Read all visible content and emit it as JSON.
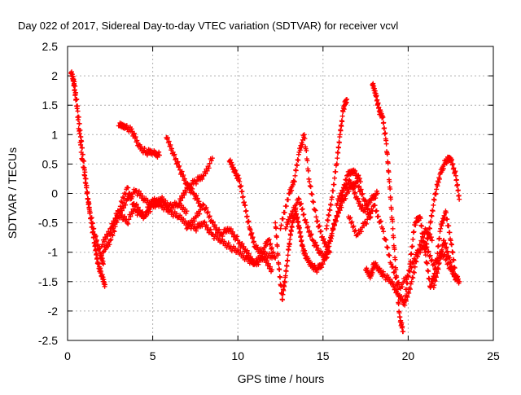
{
  "chart_data": {
    "type": "scatter",
    "title": "Day 022 of 2017, Sidereal Day-to-day VTEC variation (SDTVAR) for receiver vcvl",
    "xlabel": "GPS time / hours",
    "ylabel": "SDTVAR / TECUs",
    "xlim": [
      0,
      25
    ],
    "ylim": [
      -2.5,
      2.5
    ],
    "xticks": [
      0,
      5,
      10,
      15,
      20,
      25
    ],
    "yticks": [
      -2.5,
      -2,
      -1.5,
      -1,
      -0.5,
      0,
      0.5,
      1,
      1.5,
      2,
      2.5
    ],
    "xtick_labels": [
      "0",
      "5",
      "10",
      "15",
      "20",
      "25"
    ],
    "ytick_labels": [
      "-2.5",
      "-2",
      "-1.5",
      "-1",
      "-0.5",
      "0",
      "0.5",
      "1",
      "1.5",
      "2",
      "2.5"
    ],
    "grid": true,
    "marker": "+",
    "series": [
      {
        "name": "SDTVAR",
        "color": "#ff0000",
        "tracks": [
          {
            "x": [
              0.2,
              0.4,
              0.6,
              0.8,
              1.0,
              1.2,
              1.4,
              1.6,
              1.8,
              2.0,
              2.2
            ],
            "y": [
              2.05,
              1.9,
              1.4,
              0.9,
              0.4,
              -0.1,
              -0.5,
              -0.9,
              -1.2,
              -1.4,
              -1.55
            ]
          },
          {
            "x": [
              0.3,
              0.5,
              0.8,
              1.1,
              1.3,
              1.6,
              1.9,
              2.1
            ],
            "y": [
              1.95,
              1.6,
              0.7,
              0.1,
              -0.3,
              -0.7,
              -1.0,
              -1.2
            ]
          },
          {
            "x": [
              2.1,
              2.5,
              3.0,
              3.5,
              4.0,
              4.5,
              5.0,
              5.5,
              6.0,
              6.5,
              7.0,
              7.5,
              8.0,
              8.5,
              9.0,
              9.5,
              10.0,
              10.5,
              11.0,
              11.5,
              12.0
            ],
            "y": [
              -1.0,
              -0.8,
              -0.4,
              -0.1,
              0.05,
              -0.1,
              -0.2,
              -0.15,
              -0.3,
              -0.4,
              -0.5,
              -0.6,
              -0.5,
              -0.7,
              -0.8,
              -0.9,
              -1.0,
              -1.1,
              -1.2,
              -1.0,
              -1.1
            ]
          },
          {
            "x": [
              2.0,
              2.5,
              3.0,
              3.5,
              4.0,
              4.5,
              5.0,
              5.5,
              6.0,
              6.5,
              7.0
            ],
            "y": [
              -0.9,
              -0.6,
              -0.3,
              0.1,
              -0.3,
              -0.4,
              -0.2,
              -0.1,
              -0.2,
              -0.2,
              -0.3
            ]
          },
          {
            "x": [
              2.5,
              3.0,
              3.5,
              4.0,
              4.5,
              5.0,
              5.5,
              6.0
            ],
            "y": [
              -0.7,
              -0.3,
              -0.5,
              -0.2,
              -0.4,
              -0.1,
              -0.2,
              -0.3
            ]
          },
          {
            "x": [
              3.0,
              3.4,
              3.8,
              4.2,
              4.6,
              5.0,
              5.4
            ],
            "y": [
              1.15,
              1.15,
              1.05,
              0.8,
              0.7,
              0.7,
              0.65
            ]
          },
          {
            "x": [
              5.8,
              6.2,
              6.6,
              7.0,
              7.4,
              7.8
            ],
            "y": [
              0.95,
              0.7,
              0.4,
              0.15,
              0.0,
              -0.2
            ]
          },
          {
            "x": [
              6.5,
              7.0,
              7.5,
              8.0,
              8.5
            ],
            "y": [
              -0.2,
              0.1,
              0.2,
              0.3,
              0.6
            ]
          },
          {
            "x": [
              7.0,
              7.5,
              8.0,
              8.5,
              9.0,
              9.5,
              10.0,
              10.5,
              11.0,
              11.5,
              12.0
            ],
            "y": [
              -0.6,
              -0.4,
              -0.2,
              -0.5,
              -0.7,
              -0.6,
              -0.8,
              -1.0,
              -1.2,
              -1.1,
              -1.3
            ]
          },
          {
            "x": [
              9.5,
              9.8,
              10.1,
              10.4,
              10.7,
              11.0,
              11.4,
              11.8,
              12.2
            ],
            "y": [
              0.55,
              0.4,
              0.2,
              -0.2,
              -0.6,
              -0.9,
              -1.0,
              -0.8,
              -1.1
            ]
          },
          {
            "x": [
              12.2,
              12.4,
              12.6,
              12.8,
              13.0,
              13.2,
              13.4,
              13.6,
              13.8,
              14.0,
              14.3,
              14.6,
              15.0,
              15.4,
              15.8,
              16.2,
              16.6,
              17.0,
              17.4,
              17.8
            ],
            "y": [
              -0.5,
              -1.2,
              -1.8,
              -1.4,
              -0.9,
              -0.5,
              -0.3,
              -0.6,
              -0.9,
              -1.1,
              -1.2,
              -1.3,
              -1.2,
              -0.8,
              -0.4,
              -0.1,
              0.1,
              0.2,
              -0.1,
              -0.4
            ]
          },
          {
            "x": [
              12.5,
              13.0,
              13.3,
              13.6,
              13.9,
              14.2,
              14.6,
              15.0,
              15.4
            ],
            "y": [
              -0.6,
              0.0,
              0.2,
              0.7,
              1.0,
              0.2,
              -0.4,
              -0.8,
              -1.0
            ]
          },
          {
            "x": [
              12.8,
              13.2,
              13.6,
              14.0,
              14.4,
              14.8,
              15.2,
              15.6,
              16.0,
              16.4,
              16.8,
              17.2
            ],
            "y": [
              -0.6,
              -0.3,
              -0.1,
              -0.5,
              -0.8,
              -1.0,
              -1.1,
              -0.6,
              -0.2,
              0.3,
              0.4,
              0.2
            ]
          },
          {
            "x": [
              15.2,
              15.5,
              15.8,
              16.0,
              16.2,
              16.4
            ],
            "y": [
              -0.6,
              -0.1,
              0.5,
              1.0,
              1.45,
              1.6
            ]
          },
          {
            "x": [
              15.8,
              16.2,
              16.6,
              17.0,
              17.4,
              17.8,
              18.2
            ],
            "y": [
              -0.2,
              0.1,
              0.2,
              -0.1,
              -0.3,
              -0.1,
              0.0
            ]
          },
          {
            "x": [
              16.5,
              17.0,
              17.5,
              18.0,
              18.5,
              19.0,
              19.5,
              20.0,
              20.5,
              21.0,
              21.5,
              22.0,
              22.5,
              23.0
            ],
            "y": [
              -0.4,
              -0.7,
              -0.5,
              -0.2,
              -0.6,
              -1.2,
              -1.6,
              -1.4,
              -1.0,
              -0.9,
              -1.2,
              -1.0,
              -1.3,
              -1.5
            ]
          },
          {
            "x": [
              17.9,
              18.1,
              18.3,
              18.5,
              18.7,
              18.9,
              19.1,
              19.3,
              19.5,
              19.7
            ],
            "y": [
              1.85,
              1.7,
              1.4,
              1.3,
              0.9,
              0.2,
              -0.6,
              -1.4,
              -2.1,
              -2.35
            ]
          },
          {
            "x": [
              17.5,
              17.8,
              18.0,
              18.3,
              18.6,
              19.0,
              19.4,
              19.8,
              20.2,
              20.6,
              21.0,
              21.4
            ],
            "y": [
              -1.3,
              -1.4,
              -1.2,
              -1.3,
              -1.4,
              -1.5,
              -1.7,
              -1.9,
              -1.5,
              -1.0,
              -0.6,
              -0.8
            ]
          },
          {
            "x": [
              19.8,
              20.1,
              20.4,
              20.7,
              21.0,
              21.3,
              21.6,
              21.9,
              22.2,
              22.5,
              22.8
            ],
            "y": [
              -1.8,
              -1.2,
              -0.5,
              -0.4,
              -1.0,
              -1.6,
              -1.3,
              -0.6,
              -0.3,
              -0.8,
              -1.4
            ]
          },
          {
            "x": [
              21.0,
              21.3,
              21.6,
              21.9,
              22.2,
              22.5,
              22.8,
              23.0
            ],
            "y": [
              -1.0,
              -0.5,
              0.0,
              0.35,
              0.55,
              0.6,
              0.3,
              -0.1
            ]
          },
          {
            "x": [
              21.5,
              21.8,
              22.1,
              22.4,
              22.7,
              23.0
            ],
            "y": [
              -1.6,
              -1.2,
              -0.8,
              -1.1,
              -1.4,
              -1.5
            ]
          }
        ]
      }
    ]
  }
}
